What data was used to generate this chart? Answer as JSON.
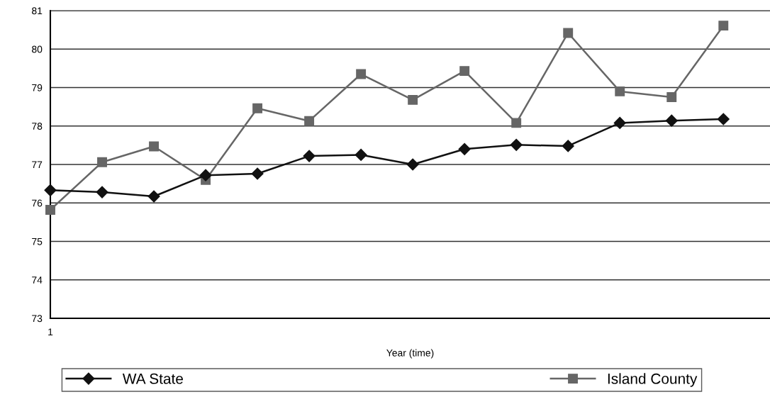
{
  "chart_data": {
    "type": "line",
    "xlabel": "Year (time)",
    "categories": [
      "1",
      null,
      null,
      null,
      null,
      null,
      null,
      null,
      null,
      null,
      null,
      null,
      null,
      null
    ],
    "ylim": [
      73,
      81
    ],
    "yticks": [
      73,
      74,
      75,
      76,
      77,
      78,
      79,
      80,
      81
    ],
    "grid": "y",
    "legend": "bottom",
    "series": [
      {
        "name": "WA State",
        "color": "#111111",
        "marker": "diamond",
        "values": [
          76.33,
          76.28,
          76.17,
          76.72,
          76.76,
          77.22,
          77.25,
          77.0,
          77.4,
          77.51,
          77.48,
          78.08,
          78.14,
          78.18
        ]
      },
      {
        "name": "Island County",
        "color": "#666666",
        "marker": "square",
        "values": [
          75.82,
          77.06,
          77.47,
          76.6,
          78.46,
          78.13,
          79.35,
          78.68,
          79.43,
          78.08,
          80.42,
          78.9,
          78.75,
          80.61
        ]
      }
    ]
  }
}
